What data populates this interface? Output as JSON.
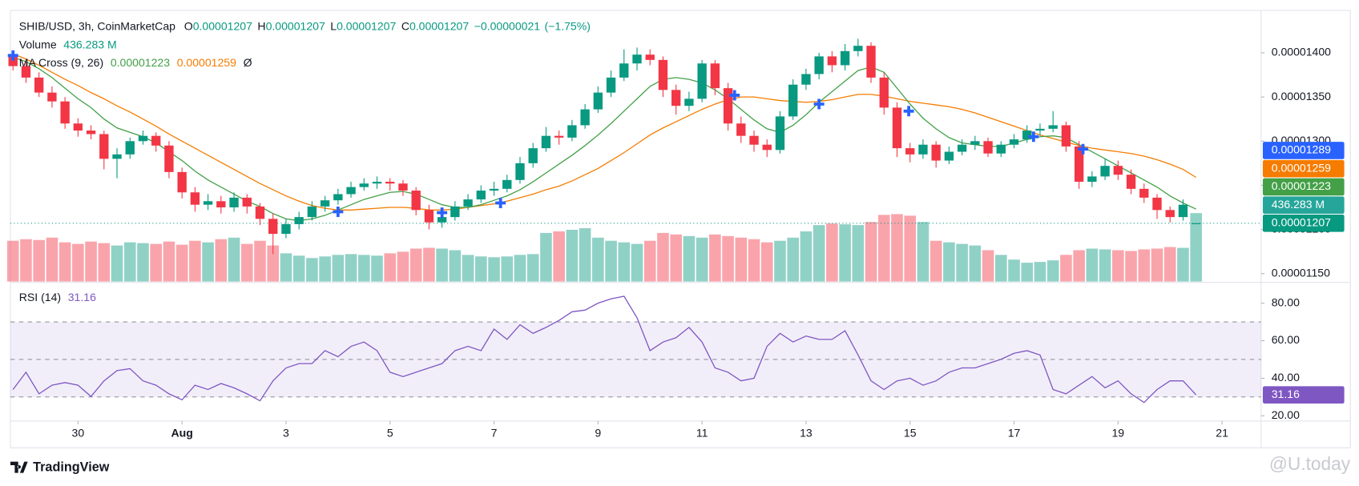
{
  "chart_data": {
    "type": "candlestick",
    "legend": {
      "symbol": "SHIB/USD, 3h, CoinMarketCap",
      "items": [
        {
          "key": "O",
          "value": 1.207e-05
        },
        {
          "key": "H",
          "value": 1.207e-05
        },
        {
          "key": "L",
          "value": 1.207e-05
        },
        {
          "key": "C",
          "value": 1.207e-05
        }
      ],
      "change": {
        "value": -2.1e-07,
        "label": "−0.00000021"
      },
      "change_pct": {
        "value": -1.75,
        "label": "(−1.75%)"
      }
    },
    "colors": {
      "up": "#089981",
      "down": "#f23645"
    },
    "candles": [
      [
        1.398e-05,
        1.402e-05,
        1.38e-05,
        1.385e-05
      ],
      [
        1.385e-05,
        1.39e-05,
        1.366e-05,
        1.372e-05
      ],
      [
        1.372e-05,
        1.378e-05,
        1.35e-05,
        1.355e-05
      ],
      [
        1.355e-05,
        1.362e-05,
        1.338e-05,
        1.345e-05
      ],
      [
        1.345e-05,
        1.35e-05,
        1.314e-05,
        1.32e-05
      ],
      [
        1.32e-05,
        1.326e-05,
        1.305e-05,
        1.312e-05
      ],
      [
        1.312e-05,
        1.318e-05,
        1.302e-05,
        1.308e-05
      ],
      [
        1.308e-05,
        1.312e-05,
        1.268e-05,
        1.28e-05
      ],
      [
        1.28e-05,
        1.292e-05,
        1.258e-05,
        1.285e-05
      ],
      [
        1.285e-05,
        1.304e-05,
        1.28e-05,
        1.3e-05
      ],
      [
        1.3e-05,
        1.312e-05,
        1.296e-05,
        1.306e-05
      ],
      [
        1.306e-05,
        1.31e-05,
        1.288e-05,
        1.295e-05
      ],
      [
        1.295e-05,
        1.3e-05,
        1.258e-05,
        1.265e-05
      ],
      [
        1.265e-05,
        1.27e-05,
        1.235e-05,
        1.242e-05
      ],
      [
        1.242e-05,
        1.248e-05,
        1.22e-05,
        1.228e-05
      ],
      [
        1.228e-05,
        1.24e-05,
        1.222e-05,
        1.232e-05
      ],
      [
        1.232e-05,
        1.238e-05,
        1.218e-05,
        1.225e-05
      ],
      [
        1.225e-05,
        1.242e-05,
        1.22e-05,
        1.236e-05
      ],
      [
        1.236e-05,
        1.24e-05,
        1.218e-05,
        1.226e-05
      ],
      [
        1.226e-05,
        1.23e-05,
        1.205e-05,
        1.212e-05
      ],
      [
        1.212e-05,
        1.218e-05,
        1.172e-05,
        1.195e-05
      ],
      [
        1.195e-05,
        1.212e-05,
        1.19e-05,
        1.206e-05
      ],
      [
        1.206e-05,
        1.22e-05,
        1.2e-05,
        1.214e-05
      ],
      [
        1.214e-05,
        1.232e-05,
        1.21e-05,
        1.226e-05
      ],
      [
        1.226e-05,
        1.238e-05,
        1.22e-05,
        1.233e-05
      ],
      [
        1.233e-05,
        1.246e-05,
        1.228e-05,
        1.24e-05
      ],
      [
        1.24e-05,
        1.254e-05,
        1.236e-05,
        1.248e-05
      ],
      [
        1.248e-05,
        1.258e-05,
        1.244e-05,
        1.252e-05
      ],
      [
        1.252e-05,
        1.26e-05,
        1.246e-05,
        1.254e-05
      ],
      [
        1.254e-05,
        1.258e-05,
        1.244e-05,
        1.252e-05
      ],
      [
        1.252e-05,
        1.256e-05,
        1.238e-05,
        1.244e-05
      ],
      [
        1.244e-05,
        1.248e-05,
        1.216e-05,
        1.222e-05
      ],
      [
        1.222e-05,
        1.228e-05,
        1.2e-05,
        1.208e-05
      ],
      [
        1.208e-05,
        1.22e-05,
        1.202e-05,
        1.214e-05
      ],
      [
        1.214e-05,
        1.232e-05,
        1.21e-05,
        1.226e-05
      ],
      [
        1.226e-05,
        1.24e-05,
        1.222e-05,
        1.234e-05
      ],
      [
        1.234e-05,
        1.25e-05,
        1.23e-05,
        1.244e-05
      ],
      [
        1.244e-05,
        1.254e-05,
        1.238e-05,
        1.246e-05
      ],
      [
        1.246e-05,
        1.262e-05,
        1.242e-05,
        1.256e-05
      ],
      [
        1.256e-05,
        1.282e-05,
        1.252e-05,
        1.275e-05
      ],
      [
        1.275e-05,
        1.298e-05,
        1.27e-05,
        1.292e-05
      ],
      [
        1.292e-05,
        1.316e-05,
        1.288e-05,
        1.306e-05
      ],
      [
        1.306e-05,
        1.312e-05,
        1.296e-05,
        1.304e-05
      ],
      [
        1.304e-05,
        1.324e-05,
        1.3e-05,
        1.318e-05
      ],
      [
        1.318e-05,
        1.342e-05,
        1.314e-05,
        1.336e-05
      ],
      [
        1.336e-05,
        1.362e-05,
        1.332e-05,
        1.355e-05
      ],
      [
        1.355e-05,
        1.38e-05,
        1.35e-05,
        1.372e-05
      ],
      [
        1.372e-05,
        1.404e-05,
        1.368e-05,
        1.388e-05
      ],
      [
        1.388e-05,
        1.406e-05,
        1.38e-05,
        1.398e-05
      ],
      [
        1.398e-05,
        1.404e-05,
        1.386e-05,
        1.392e-05
      ],
      [
        1.392e-05,
        1.396e-05,
        1.35e-05,
        1.358e-05
      ],
      [
        1.358e-05,
        1.364e-05,
        1.33e-05,
        1.34e-05
      ],
      [
        1.34e-05,
        1.356e-05,
        1.334e-05,
        1.348e-05
      ],
      [
        1.348e-05,
        1.392e-05,
        1.344e-05,
        1.388e-05
      ],
      [
        1.388e-05,
        1.392e-05,
        1.352e-05,
        1.36e-05
      ],
      [
        1.36e-05,
        1.366e-05,
        1.312e-05,
        1.32e-05
      ],
      [
        1.32e-05,
        1.328e-05,
        1.298e-05,
        1.306e-05
      ],
      [
        1.306e-05,
        1.312e-05,
        1.288e-05,
        1.296e-05
      ],
      [
        1.296e-05,
        1.302e-05,
        1.282e-05,
        1.29e-05
      ],
      [
        1.29e-05,
        1.334e-05,
        1.286e-05,
        1.328e-05
      ],
      [
        1.328e-05,
        1.37e-05,
        1.324e-05,
        1.364e-05
      ],
      [
        1.364e-05,
        1.382e-05,
        1.358e-05,
        1.376e-05
      ],
      [
        1.376e-05,
        1.4e-05,
        1.37e-05,
        1.396e-05
      ],
      [
        1.396e-05,
        1.402e-05,
        1.378e-05,
        1.386e-05
      ],
      [
        1.386e-05,
        1.41e-05,
        1.38e-05,
        1.402e-05
      ],
      [
        1.402e-05,
        1.416e-05,
        1.396e-05,
        1.408e-05
      ],
      [
        1.408e-05,
        1.412e-05,
        1.366e-05,
        1.372e-05
      ],
      [
        1.372e-05,
        1.378e-05,
        1.33e-05,
        1.338e-05
      ],
      [
        1.338e-05,
        1.344e-05,
        1.282e-05,
        1.292e-05
      ],
      [
        1.292e-05,
        1.298e-05,
        1.276e-05,
        1.285e-05
      ],
      [
        1.285e-05,
        1.302e-05,
        1.28e-05,
        1.296e-05
      ],
      [
        1.296e-05,
        1.3e-05,
        1.27e-05,
        1.278e-05
      ],
      [
        1.278e-05,
        1.294e-05,
        1.274e-05,
        1.288e-05
      ],
      [
        1.288e-05,
        1.302e-05,
        1.284e-05,
        1.296e-05
      ],
      [
        1.296e-05,
        1.306e-05,
        1.29e-05,
        1.3e-05
      ],
      [
        1.3e-05,
        1.304e-05,
        1.282e-05,
        1.286e-05
      ],
      [
        1.286e-05,
        1.3e-05,
        1.282e-05,
        1.296e-05
      ],
      [
        1.296e-05,
        1.308e-05,
        1.292e-05,
        1.302e-05
      ],
      [
        1.302e-05,
        1.318e-05,
        1.298e-05,
        1.312e-05
      ],
      [
        1.312e-05,
        1.32e-05,
        1.306e-05,
        1.314e-05
      ],
      [
        1.314e-05,
        1.334e-05,
        1.31e-05,
        1.318e-05
      ],
      [
        1.318e-05,
        1.322e-05,
        1.288e-05,
        1.294e-05
      ],
      [
        1.294e-05,
        1.3e-05,
        1.246e-05,
        1.254e-05
      ],
      [
        1.254e-05,
        1.266e-05,
        1.248e-05,
        1.26e-05
      ],
      [
        1.26e-05,
        1.28e-05,
        1.256e-05,
        1.272e-05
      ],
      [
        1.272e-05,
        1.278e-05,
        1.256e-05,
        1.262e-05
      ],
      [
        1.262e-05,
        1.268e-05,
        1.24e-05,
        1.246e-05
      ],
      [
        1.246e-05,
        1.252e-05,
        1.23e-05,
        1.236e-05
      ],
      [
        1.236e-05,
        1.24e-05,
        1.212e-05,
        1.222e-05
      ],
      [
        1.222e-05,
        1.226e-05,
        1.208e-05,
        1.214e-05
      ],
      [
        1.214e-05,
        1.234e-05,
        1.21e-05,
        1.228e-05
      ],
      [
        1.207e-05,
        1.207e-05,
        1.207e-05,
        1.207e-05
      ]
    ],
    "xlim": [
      -0.2,
      96
    ],
    "xticks": [
      {
        "value": 5,
        "label": "30"
      },
      {
        "value": 13,
        "label": "Aug",
        "bold": true
      },
      {
        "value": 21,
        "label": "3"
      },
      {
        "value": 29,
        "label": "5"
      },
      {
        "value": 37,
        "label": "7"
      },
      {
        "value": 45,
        "label": "9"
      },
      {
        "value": 53,
        "label": "11"
      },
      {
        "value": 61,
        "label": "13"
      },
      {
        "value": 69,
        "label": "15"
      },
      {
        "value": 77,
        "label": "17"
      },
      {
        "value": 85,
        "label": "19"
      },
      {
        "value": 93,
        "label": "21"
      }
    ],
    "ylim": [
      1.141e-05,
      1.448e-05
    ],
    "yticks": [
      {
        "value": 1.15e-05,
        "label": "0.00001150"
      },
      {
        "value": 1.2e-05,
        "label": "0.00001200"
      },
      {
        "value": 1.25e-05,
        "label": "0.00001250"
      },
      {
        "value": 1.3e-05,
        "label": "0.00001300"
      },
      {
        "value": 1.35e-05,
        "label": "0.00001350"
      },
      {
        "value": 1.4e-05,
        "label": "0.00001400"
      }
    ],
    "volume": {
      "name": "Volume",
      "last_label": "436.283 M",
      "values": [
        260,
        270,
        265,
        280,
        250,
        240,
        255,
        245,
        230,
        250,
        245,
        240,
        255,
        235,
        260,
        250,
        270,
        280,
        240,
        260,
        230,
        180,
        165,
        150,
        160,
        170,
        175,
        170,
        165,
        180,
        190,
        210,
        215,
        210,
        200,
        170,
        160,
        155,
        160,
        170,
        175,
        310,
        320,
        330,
        340,
        280,
        260,
        250,
        240,
        260,
        310,
        300,
        290,
        280,
        300,
        290,
        280,
        270,
        250,
        260,
        280,
        320,
        360,
        370,
        365,
        360,
        380,
        425,
        430,
        420,
        380,
        260,
        250,
        240,
        230,
        200,
        170,
        140,
        120,
        125,
        135,
        170,
        200,
        210,
        205,
        200,
        195,
        205,
        210,
        220,
        215,
        436.283
      ]
    },
    "ma": {
      "name": "MA Cross (9, 26)",
      "symbol": "Ø",
      "fast": {
        "color": "#43a047",
        "last": 1.223e-05,
        "values": [
          1.395e-05,
          1.39e-05,
          1.382e-05,
          1.372e-05,
          1.36e-05,
          1.348e-05,
          1.338e-05,
          1.325e-05,
          1.315e-05,
          1.31e-05,
          1.305e-05,
          1.298e-05,
          1.288e-05,
          1.278e-05,
          1.266e-05,
          1.256e-05,
          1.248e-05,
          1.24e-05,
          1.232e-05,
          1.226e-05,
          1.218e-05,
          1.212e-05,
          1.21e-05,
          1.212e-05,
          1.216e-05,
          1.222e-05,
          1.228e-05,
          1.234e-05,
          1.238e-05,
          1.242e-05,
          1.243e-05,
          1.24e-05,
          1.234e-05,
          1.228e-05,
          1.225e-05,
          1.225e-05,
          1.228e-05,
          1.233e-05,
          1.238e-05,
          1.245e-05,
          1.254e-05,
          1.264e-05,
          1.274e-05,
          1.284e-05,
          1.295e-05,
          1.307e-05,
          1.32e-05,
          1.334e-05,
          1.348e-05,
          1.362e-05,
          1.37e-05,
          1.372e-05,
          1.37e-05,
          1.366e-05,
          1.358e-05,
          1.348e-05,
          1.336e-05,
          1.324e-05,
          1.314e-05,
          1.31e-05,
          1.318e-05,
          1.33e-05,
          1.344e-05,
          1.356e-05,
          1.368e-05,
          1.38e-05,
          1.384e-05,
          1.378e-05,
          1.36e-05,
          1.342e-05,
          1.326e-05,
          1.314e-05,
          1.304e-05,
          1.298e-05,
          1.296e-05,
          1.294e-05,
          1.294e-05,
          1.298e-05,
          1.302e-05,
          1.305e-05,
          1.306e-05,
          1.304e-05,
          1.296e-05,
          1.288e-05,
          1.28e-05,
          1.272e-05,
          1.264e-05,
          1.256e-05,
          1.248e-05,
          1.238e-05,
          1.23e-05,
          1.223e-05
        ]
      },
      "slow": {
        "color": "#f57c00",
        "last": 1.259e-05,
        "values": [
          1.399e-05,
          1.393e-05,
          1.386e-05,
          1.378e-05,
          1.37e-05,
          1.363e-05,
          1.355e-05,
          1.348e-05,
          1.34e-05,
          1.333e-05,
          1.325e-05,
          1.317e-05,
          1.308e-05,
          1.3e-05,
          1.292e-05,
          1.284e-05,
          1.276e-05,
          1.268e-05,
          1.26e-05,
          1.252e-05,
          1.245e-05,
          1.238e-05,
          1.232e-05,
          1.227e-05,
          1.224e-05,
          1.222e-05,
          1.222e-05,
          1.223e-05,
          1.224e-05,
          1.225e-05,
          1.225e-05,
          1.224e-05,
          1.222e-05,
          1.222e-05,
          1.223e-05,
          1.225e-05,
          1.227e-05,
          1.229e-05,
          1.232e-05,
          1.236e-05,
          1.24e-05,
          1.245e-05,
          1.249e-05,
          1.255e-05,
          1.262e-05,
          1.269e-05,
          1.278e-05,
          1.287e-05,
          1.297e-05,
          1.307e-05,
          1.315e-05,
          1.322e-05,
          1.329e-05,
          1.336e-05,
          1.342e-05,
          1.347e-05,
          1.35e-05,
          1.35e-05,
          1.348e-05,
          1.346e-05,
          1.345e-05,
          1.344e-05,
          1.345e-05,
          1.347e-05,
          1.35e-05,
          1.353e-05,
          1.353e-05,
          1.351e-05,
          1.348e-05,
          1.345e-05,
          1.343e-05,
          1.341e-05,
          1.339e-05,
          1.336e-05,
          1.332e-05,
          1.327e-05,
          1.322e-05,
          1.317e-05,
          1.312e-05,
          1.307e-05,
          1.303e-05,
          1.299e-05,
          1.295e-05,
          1.292e-05,
          1.29e-05,
          1.288e-05,
          1.286e-05,
          1.283e-05,
          1.279e-05,
          1.274e-05,
          1.268e-05,
          1.259e-05
        ]
      }
    },
    "crosses": {
      "color": "#2962ff",
      "x": [
        0,
        25,
        33,
        37.5,
        55.5,
        62,
        68.9,
        78.5,
        82.3
      ],
      "values": [
        1.397e-05,
        1.22e-05,
        1.219e-05,
        1.23e-05,
        1.352e-05,
        1.342e-05,
        1.334e-05,
        1.305e-05,
        1.291e-05
      ]
    },
    "cross_tag": 1.289e-05,
    "rsi": {
      "name": "RSI (14)",
      "color": "#7e57c2",
      "ylim": [
        17.7,
        90.6
      ],
      "yticks": [
        {
          "value": 20,
          "label": "20.00"
        },
        {
          "value": 40,
          "label": "40.00"
        },
        {
          "value": 60,
          "label": "60.00"
        },
        {
          "value": 80,
          "label": "80.00"
        }
      ],
      "levels": [
        30,
        50,
        70
      ],
      "values": [
        34,
        43.2,
        31.7,
        36.3,
        37.7,
        36.3,
        30.3,
        38.6,
        44.1,
        45.1,
        38.6,
        36.3,
        31.7,
        28.5,
        36.3,
        34,
        37.2,
        34.9,
        31.7,
        28,
        38.6,
        45.5,
        47.8,
        47.8,
        54.7,
        51.5,
        57,
        59.3,
        54.7,
        43.2,
        40.9,
        43.2,
        45.5,
        47.8,
        54.7,
        57,
        54.7,
        66.2,
        60.7,
        68.5,
        63.9,
        67.1,
        70.8,
        75.4,
        76.3,
        80,
        82.3,
        83.7,
        72.2,
        54.7,
        59.3,
        61.6,
        67.1,
        59.3,
        45.5,
        43.2,
        38.6,
        40,
        57,
        63.9,
        59.3,
        62.5,
        60.7,
        60.7,
        65.3,
        52.4,
        38.6,
        34,
        38.6,
        40,
        36.3,
        38.6,
        43.2,
        45.5,
        45.5,
        47.8,
        50.1,
        53.3,
        54.7,
        52.4,
        34,
        31.7,
        36.3,
        40.9,
        34.9,
        38.6,
        31.7,
        27.1,
        34,
        38.6,
        38.6,
        31.16
      ]
    },
    "footer": {
      "brand": "TradingView",
      "watermark": "@U.today"
    }
  }
}
